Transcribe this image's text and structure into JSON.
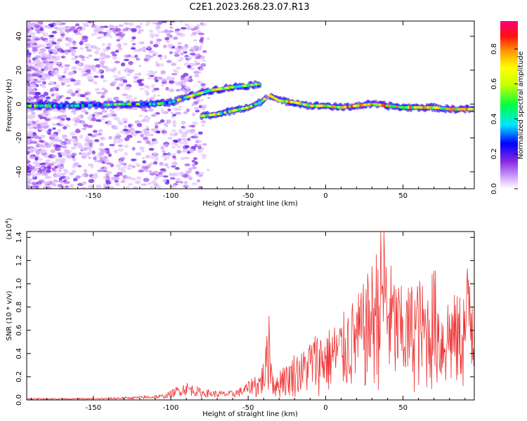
{
  "title": "C2E1.2023.268.23.07.R13",
  "chart_data": [
    {
      "type": "heatmap",
      "xlabel": "Height of straight line (km)",
      "ylabel": "Frequency (Hz)",
      "xlim": [
        -193,
        96
      ],
      "ylim": [
        -50,
        49
      ],
      "x_ticks": [
        -150,
        -100,
        -50,
        0,
        50
      ],
      "y_ticks": [
        -40,
        -20,
        0,
        20,
        40
      ],
      "colorbar": {
        "label": "Normalized spectral amplitude",
        "range": [
          0.0,
          0.96
        ],
        "ticks": [
          "0.0",
          "0.2",
          "0.4",
          "0.6",
          "0.8"
        ],
        "colormap": "rainbow (white-violet-blue-cyan-green-yellow-orange-red-magenta)"
      },
      "ridges": [
        {
          "x": [
            -193,
            -160,
            -130,
            -110,
            -100,
            -90,
            -75,
            -60,
            -50,
            -42
          ],
          "y": [
            -1,
            -1,
            0,
            0,
            1,
            4,
            8,
            10,
            11,
            12
          ]
        },
        {
          "x": [
            -80,
            -70,
            -60,
            -50,
            -42,
            -38
          ],
          "y": [
            -7,
            -6,
            -4,
            -2,
            1,
            4
          ]
        },
        {
          "x": [
            -36,
            -30,
            -20,
            -10,
            0,
            10,
            20,
            30,
            40,
            50,
            60,
            70,
            80,
            96
          ],
          "y": [
            5,
            2,
            1,
            -1,
            -1,
            -2,
            -1,
            0,
            -1,
            -2,
            -2,
            -2,
            -3,
            -3
          ]
        }
      ]
    },
    {
      "type": "line",
      "xlabel": "Height of straight line (km)",
      "ylabel": "SNR (10 * v/v)",
      "yscale_note": "(x10^4)",
      "xlim": [
        -193,
        96
      ],
      "ylim": [
        0.0,
        1.45
      ],
      "x_ticks": [
        -150,
        -100,
        -50,
        0,
        50
      ],
      "y_ticks": [
        "0.0",
        "0.2",
        "0.4",
        "0.6",
        "0.8",
        "1.0",
        "1.2",
        "1.4"
      ],
      "color": "#ee3333",
      "series": [
        {
          "x": [
            -193,
            -150,
            -120,
            -105,
            -100,
            -95,
            -90,
            -85,
            -80,
            -70,
            -60,
            -55,
            -50,
            -45,
            -42,
            -40,
            -38,
            -37,
            -36,
            -35,
            -34,
            -32,
            -30,
            -28,
            -25,
            -20,
            -15,
            -10,
            -5,
            0,
            5,
            10,
            15,
            20,
            25,
            30,
            35,
            37,
            40,
            45,
            50,
            55,
            60,
            65,
            70,
            75,
            80,
            85,
            90,
            93,
            96
          ],
          "y": [
            0.01,
            0.01,
            0.02,
            0.03,
            0.05,
            0.08,
            0.1,
            0.08,
            0.06,
            0.05,
            0.05,
            0.07,
            0.1,
            0.15,
            0.22,
            0.3,
            0.45,
            0.82,
            0.6,
            0.35,
            0.25,
            0.15,
            0.2,
            0.3,
            0.25,
            0.35,
            0.35,
            0.45,
            0.5,
            0.5,
            0.55,
            0.6,
            0.7,
            0.75,
            0.85,
            1.0,
            1.2,
            1.45,
            1.05,
            0.9,
            0.8,
            0.85,
            0.9,
            0.8,
            1.0,
            0.7,
            0.8,
            0.75,
            0.85,
            1.15,
            0.9
          ]
        }
      ]
    }
  ]
}
